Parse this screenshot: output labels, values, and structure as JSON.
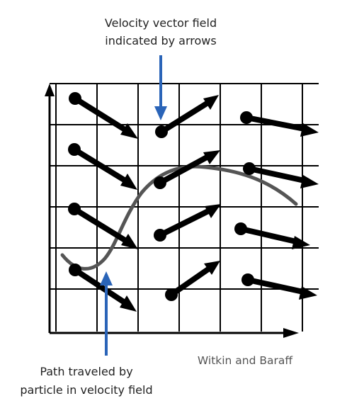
{
  "annotations": {
    "top_label_line1": "Velocity vector field",
    "top_label_line2": "indicated by arrows",
    "bottom_label_line1": "Path traveled by",
    "bottom_label_line2": "particle in velocity field",
    "credit": "Witkin and Baraff"
  },
  "colors": {
    "annotation_arrow": "#2a64b8",
    "grid": "#000000",
    "vectors": "#000000",
    "path": "#555555",
    "credit_text": "#555555"
  },
  "icons": {
    "vector_marker": "filled-circle-dot",
    "vector_head": "filled-triangle-arrowhead"
  }
}
